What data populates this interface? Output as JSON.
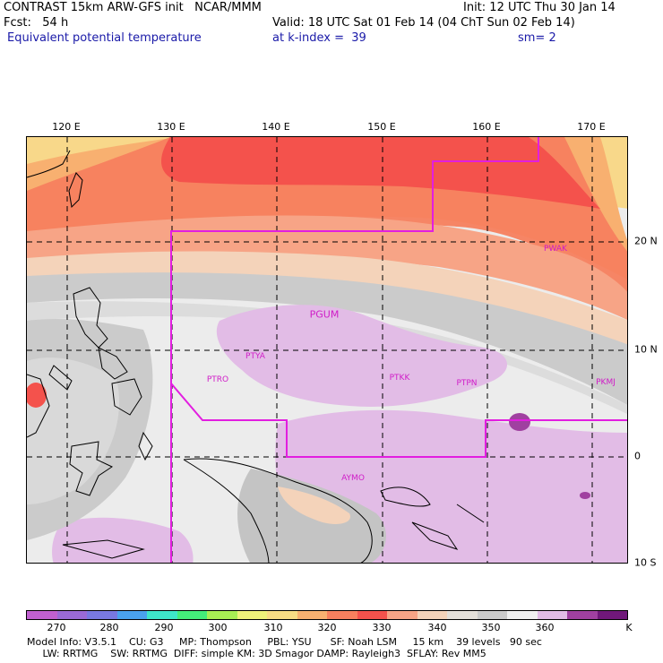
{
  "header": {
    "line1_left": "CONTRAST 15km ARW-GFS init   NCAR/MMM",
    "line1_right": "Init: 12 UTC Thu 30 Jan 14",
    "line2_left": "Fcst:   54 h",
    "line2_right": "Valid: 18 UTC Sat 01 Feb 14 (04 ChT Sun 02 Feb 14)",
    "line3_left": "Equivalent potential temperature",
    "line3_mid": "at k-index =  39",
    "line3_right": "sm= 2"
  },
  "map": {
    "lon_labels": [
      "120 E",
      "130 E",
      "140 E",
      "150 E",
      "160 E",
      "170 E"
    ],
    "lat_labels": [
      "20 N",
      "10 N",
      "0",
      "10 S"
    ],
    "stations": [
      {
        "id": "PGUM"
      },
      {
        "id": "PTYA"
      },
      {
        "id": "PTRO"
      },
      {
        "id": "PTKK"
      },
      {
        "id": "PTPN"
      },
      {
        "id": "PKMJ"
      },
      {
        "id": "PWAK"
      },
      {
        "id": "AYMO"
      }
    ],
    "boundary_color": "#e21ee0",
    "grid_style": "dashed"
  },
  "colorbar": {
    "unit": "K",
    "ticks": [
      "270",
      "280",
      "290",
      "300",
      "310",
      "320",
      "330",
      "340",
      "350",
      "360"
    ],
    "colors": [
      "#c060d0",
      "#9a6ad6",
      "#7878e0",
      "#4aa2ec",
      "#3ee6c8",
      "#44ec7a",
      "#a8ee54",
      "#eef27a",
      "#f8dc84",
      "#f8b070",
      "#f7805e",
      "#f4524c",
      "#f7a486",
      "#f4d3ba",
      "#e4e0da",
      "#cbcbcb",
      "#f0f0f0",
      "#e2bce6",
      "#a040a0",
      "#70187a"
    ]
  },
  "footer": {
    "line1": "Model Info: V3.5.1    CU: G3     MP: Thompson     PBL: YSU      SF: Noah LSM     15 km    39 levels   90 sec",
    "line2": "     LW: RRTMG    SW: RRTMG  DIFF: simple KM: 3D Smagor DAMP: Rayleigh3  SFLAY: Rev MM5"
  }
}
